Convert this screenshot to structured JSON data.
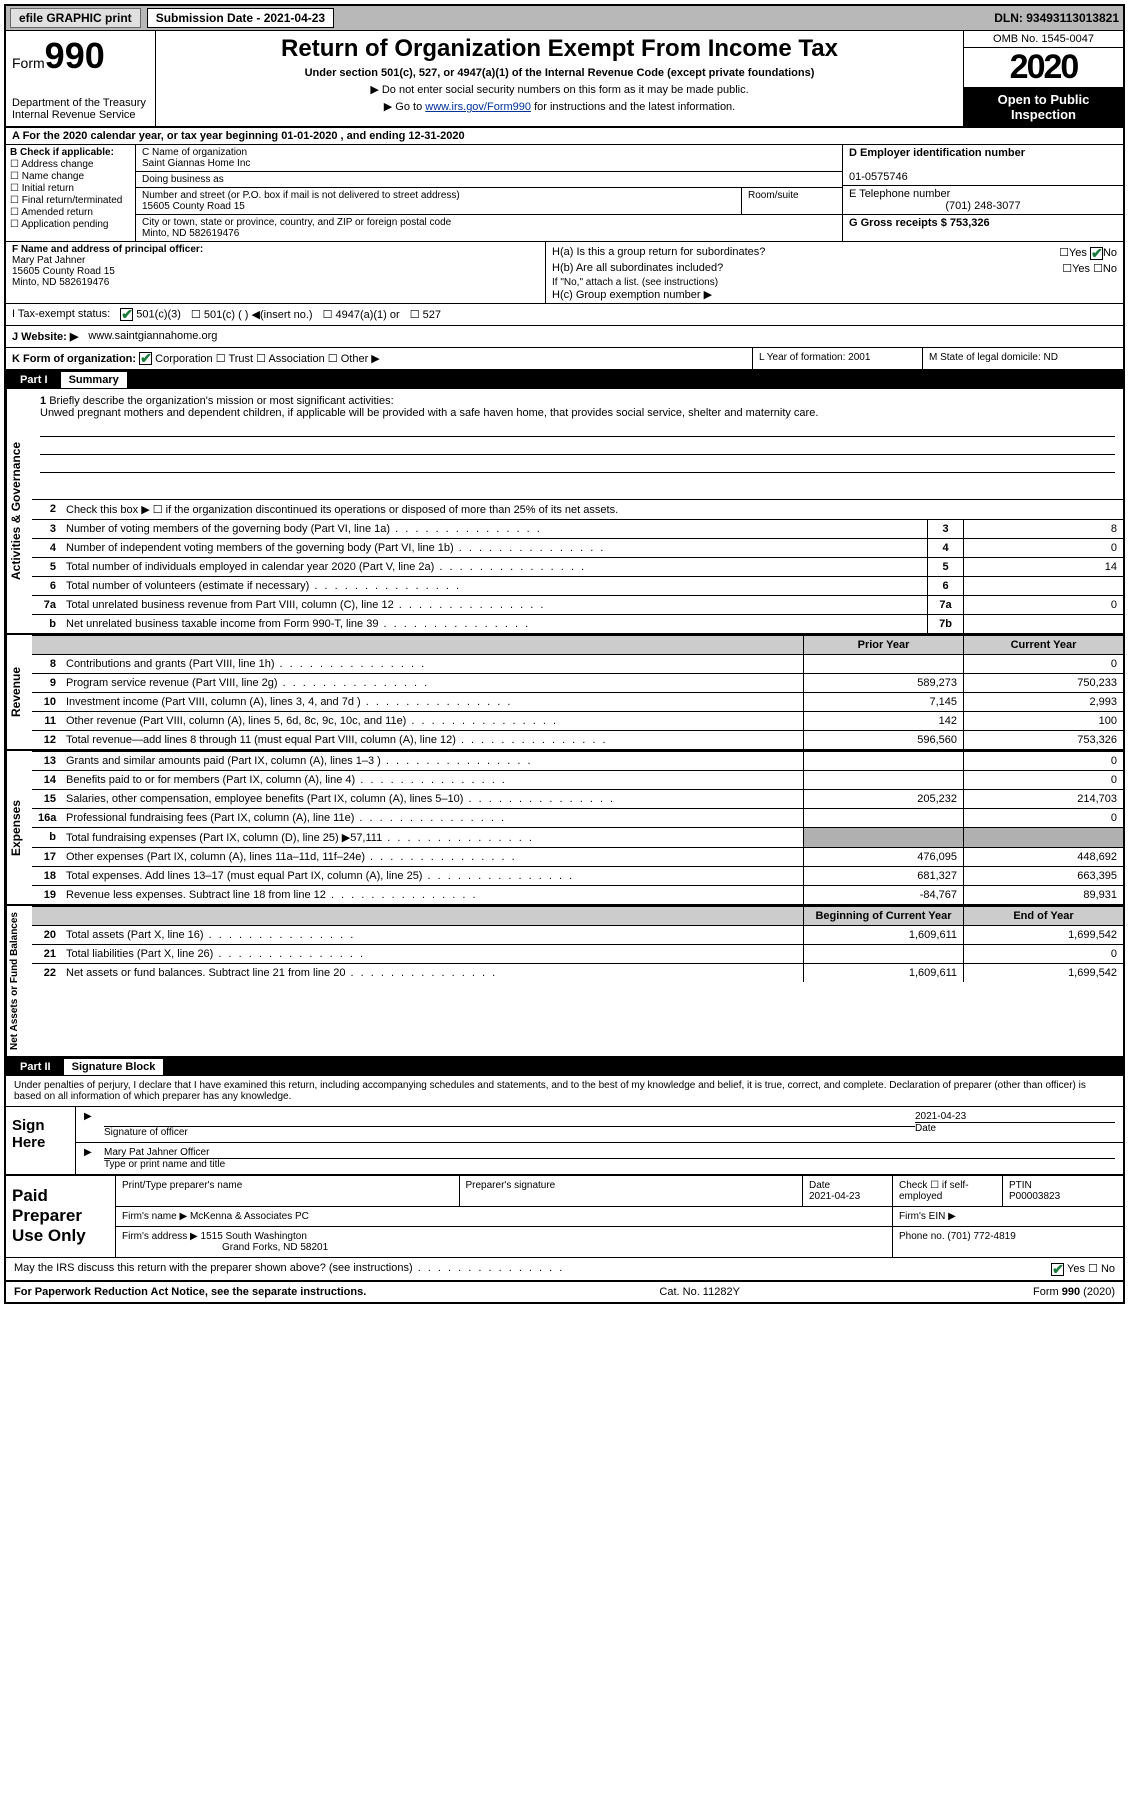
{
  "topbar": {
    "efile": "efile GRAPHIC print",
    "submission": "Submission Date - 2021-04-23",
    "dln": "DLN: 93493113013821"
  },
  "header": {
    "form_prefix": "Form",
    "form_num": "990",
    "dept": "Department of the Treasury\nInternal Revenue Service",
    "title": "Return of Organization Exempt From Income Tax",
    "sub": "Under section 501(c), 527, or 4947(a)(1) of the Internal Revenue Code (except private foundations)",
    "note1": "▶ Do not enter social security numbers on this form as it may be made public.",
    "note2_pre": "▶ Go to ",
    "note2_link": "www.irs.gov/Form990",
    "note2_post": " for instructions and the latest information.",
    "omb": "OMB No. 1545-0047",
    "year": "2020",
    "inspection": "Open to Public Inspection"
  },
  "row_a": "A For the 2020 calendar year, or tax year beginning 01-01-2020    , and ending 12-31-2020",
  "col_b": {
    "title": "B Check if applicable:",
    "opts": [
      "Address change",
      "Name change",
      "Initial return",
      "Final return/terminated",
      "Amended return",
      "Application pending"
    ]
  },
  "col_c": {
    "name_label": "C Name of organization",
    "name": "Saint Giannas Home Inc",
    "dba_label": "Doing business as",
    "addr_label": "Number and street (or P.O. box if mail is not delivered to street address)",
    "addr": "15605 County Road 15",
    "room_label": "Room/suite",
    "city_label": "City or town, state or province, country, and ZIP or foreign postal code",
    "city": "Minto, ND  582619476"
  },
  "col_d": {
    "ein_label": "D Employer identification number",
    "ein": "01-0575746",
    "phone_label": "E Telephone number",
    "phone": "(701) 248-3077",
    "gross_label": "G Gross receipts $ 753,326"
  },
  "col_f": {
    "label": "F  Name and address of principal officer:",
    "name": "Mary Pat Jahner",
    "addr1": "15605 County Road 15",
    "addr2": "Minto, ND  582619476"
  },
  "col_h": {
    "ha": "H(a)  Is this a group return for subordinates?",
    "hb": "H(b)  Are all subordinates included?",
    "hb_note": "If \"No,\" attach a list. (see instructions)",
    "hc": "H(c)  Group exemption number ▶"
  },
  "row_i": {
    "label": "I    Tax-exempt status:",
    "o1": "501(c)(3)",
    "o2": "501(c) (   ) ◀(insert no.)",
    "o3": "4947(a)(1) or",
    "o4": "527"
  },
  "row_j": {
    "label": "J   Website: ▶",
    "val": "www.saintgiannahome.org"
  },
  "row_k": {
    "label": "K Form of organization:",
    "o1": "Corporation",
    "o2": "Trust",
    "o3": "Association",
    "o4": "Other ▶",
    "l_label": "L Year of formation: 2001",
    "m_label": "M State of legal domicile: ND"
  },
  "part_i": {
    "bar": "Part I",
    "title": "Summary",
    "side1": "Activities & Governance",
    "side2": "Revenue",
    "side3": "Expenses",
    "side4": "Net Assets or Fund Balances",
    "l1": "Briefly describe the organization's mission or most significant activities:",
    "l1_text": "Unwed pregnant mothers and dependent children, if applicable will be provided with a safe haven home, that provides social service, shelter and maternity care.",
    "l2": "Check this box ▶ ☐  if the organization discontinued its operations or disposed of more than 25% of its net assets.",
    "rows_gov": [
      {
        "n": "3",
        "label": "Number of voting members of the governing body (Part VI, line 1a)",
        "box": "3",
        "val": "8"
      },
      {
        "n": "4",
        "label": "Number of independent voting members of the governing body (Part VI, line 1b)",
        "box": "4",
        "val": "0"
      },
      {
        "n": "5",
        "label": "Total number of individuals employed in calendar year 2020 (Part V, line 2a)",
        "box": "5",
        "val": "14"
      },
      {
        "n": "6",
        "label": "Total number of volunteers (estimate if necessary)",
        "box": "6",
        "val": ""
      },
      {
        "n": "7a",
        "label": "Total unrelated business revenue from Part VIII, column (C), line 12",
        "box": "7a",
        "val": "0"
      },
      {
        "n": "b",
        "label": "Net unrelated business taxable income from Form 990-T, line 39",
        "box": "7b",
        "val": ""
      }
    ],
    "head_prior": "Prior Year",
    "head_current": "Current Year",
    "rows_rev": [
      {
        "n": "8",
        "label": "Contributions and grants (Part VIII, line 1h)",
        "c1": "",
        "c2": "0"
      },
      {
        "n": "9",
        "label": "Program service revenue (Part VIII, line 2g)",
        "c1": "589,273",
        "c2": "750,233"
      },
      {
        "n": "10",
        "label": "Investment income (Part VIII, column (A), lines 3, 4, and 7d )",
        "c1": "7,145",
        "c2": "2,993"
      },
      {
        "n": "11",
        "label": "Other revenue (Part VIII, column (A), lines 5, 6d, 8c, 9c, 10c, and 11e)",
        "c1": "142",
        "c2": "100"
      },
      {
        "n": "12",
        "label": "Total revenue—add lines 8 through 11 (must equal Part VIII, column (A), line 12)",
        "c1": "596,560",
        "c2": "753,326"
      }
    ],
    "rows_exp": [
      {
        "n": "13",
        "label": "Grants and similar amounts paid (Part IX, column (A), lines 1–3 )",
        "c1": "",
        "c2": "0"
      },
      {
        "n": "14",
        "label": "Benefits paid to or for members (Part IX, column (A), line 4)",
        "c1": "",
        "c2": "0"
      },
      {
        "n": "15",
        "label": "Salaries, other compensation, employee benefits (Part IX, column (A), lines 5–10)",
        "c1": "205,232",
        "c2": "214,703"
      },
      {
        "n": "16a",
        "label": "Professional fundraising fees (Part IX, column (A), line 11e)",
        "c1": "",
        "c2": "0"
      },
      {
        "n": "b",
        "label": "Total fundraising expenses (Part IX, column (D), line 25) ▶57,111",
        "c1": "shade",
        "c2": "shade"
      },
      {
        "n": "17",
        "label": "Other expenses (Part IX, column (A), lines 11a–11d, 11f–24e)",
        "c1": "476,095",
        "c2": "448,692"
      },
      {
        "n": "18",
        "label": "Total expenses. Add lines 13–17 (must equal Part IX, column (A), line 25)",
        "c1": "681,327",
        "c2": "663,395"
      },
      {
        "n": "19",
        "label": "Revenue less expenses. Subtract line 18 from line 12",
        "c1": "-84,767",
        "c2": "89,931"
      }
    ],
    "head_begin": "Beginning of Current Year",
    "head_end": "End of Year",
    "rows_net": [
      {
        "n": "20",
        "label": "Total assets (Part X, line 16)",
        "c1": "1,609,611",
        "c2": "1,699,542"
      },
      {
        "n": "21",
        "label": "Total liabilities (Part X, line 26)",
        "c1": "",
        "c2": "0"
      },
      {
        "n": "22",
        "label": "Net assets or fund balances. Subtract line 21 from line 20",
        "c1": "1,609,611",
        "c2": "1,699,542"
      }
    ]
  },
  "part_ii": {
    "bar": "Part II",
    "title": "Signature Block",
    "decl": "Under penalties of perjury, I declare that I have examined this return, including accompanying schedules and statements, and to the best of my knowledge and belief, it is true, correct, and complete. Declaration of preparer (other than officer) is based on all information of which preparer has any knowledge.",
    "sign_here": "Sign Here",
    "sig_officer": "Signature of officer",
    "sig_date": "2021-04-23",
    "sig_date_label": "Date",
    "sig_name": "Mary Pat Jahner  Officer",
    "sig_name_label": "Type or print name and title"
  },
  "prep": {
    "title": "Paid Preparer Use Only",
    "h1": "Print/Type preparer's name",
    "h2": "Preparer's signature",
    "h3": "Date",
    "h3v": "2021-04-23",
    "h4": "Check ☐  if self-employed",
    "h5": "PTIN",
    "h5v": "P00003823",
    "firm_label": "Firm's name     ▶",
    "firm": "McKenna & Associates PC",
    "ein_label": "Firm's EIN ▶",
    "addr_label": "Firm's address ▶",
    "addr1": "1515 South Washington",
    "addr2": "Grand Forks, ND  58201",
    "phone_label": "Phone no. (701) 772-4819"
  },
  "footer": {
    "q": "May the IRS discuss this return with the preparer shown above? (see instructions)",
    "yes": "Yes",
    "no": "No",
    "paperwork": "For Paperwork Reduction Act Notice, see the separate instructions.",
    "cat": "Cat. No. 11282Y",
    "formref": "Form 990 (2020)"
  }
}
